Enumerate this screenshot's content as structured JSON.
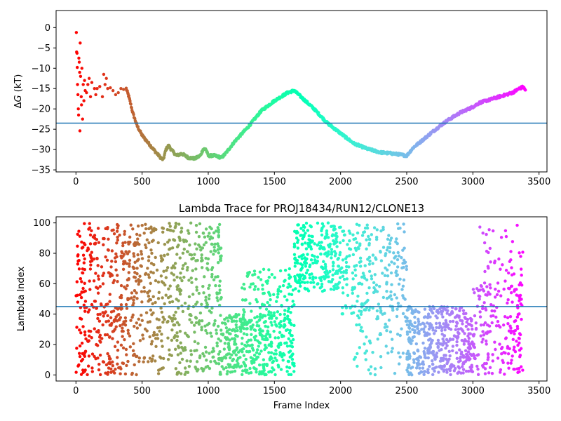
{
  "chart_data": [
    {
      "type": "scatter",
      "title": "",
      "xlabel": "",
      "ylabel_prefix": "Δ",
      "ylabel_var": "G",
      "ylabel_suffix": " (kT)",
      "xlim": [
        -150,
        3560
      ],
      "ylim": [
        -35.5,
        4.2
      ],
      "xticks": [
        0,
        500,
        1000,
        1500,
        2000,
        2500,
        3000,
        3500
      ],
      "yticks": [
        0,
        -5,
        -10,
        -15,
        -20,
        -25,
        -30,
        -35
      ],
      "hline": {
        "y": -23.5,
        "color": "#1f77b4"
      },
      "colormap": "rainbow",
      "trace_knots": [
        [
          380,
          -15
        ],
        [
          400,
          -17
        ],
        [
          430,
          -21
        ],
        [
          460,
          -24
        ],
        [
          500,
          -26.5
        ],
        [
          550,
          -28.5
        ],
        [
          600,
          -30.5
        ],
        [
          640,
          -32
        ],
        [
          660,
          -32.5
        ],
        [
          680,
          -30
        ],
        [
          700,
          -29
        ],
        [
          720,
          -30
        ],
        [
          760,
          -31.5
        ],
        [
          800,
          -31
        ],
        [
          850,
          -32
        ],
        [
          900,
          -32.2
        ],
        [
          940,
          -31.5
        ],
        [
          960,
          -30
        ],
        [
          980,
          -29.8
        ],
        [
          1000,
          -31.5
        ],
        [
          1050,
          -31.5
        ],
        [
          1100,
          -32
        ],
        [
          1130,
          -31
        ],
        [
          1200,
          -28
        ],
        [
          1300,
          -24.5
        ],
        [
          1400,
          -20.5
        ],
        [
          1500,
          -18
        ],
        [
          1600,
          -16
        ],
        [
          1650,
          -15.5
        ],
        [
          1700,
          -17
        ],
        [
          1800,
          -20
        ],
        [
          1900,
          -23.5
        ],
        [
          2000,
          -26
        ],
        [
          2100,
          -28.5
        ],
        [
          2200,
          -29.8
        ],
        [
          2300,
          -30.7
        ],
        [
          2400,
          -31
        ],
        [
          2500,
          -31.5
        ],
        [
          2550,
          -29.5
        ],
        [
          2600,
          -28.2
        ],
        [
          2700,
          -25.5
        ],
        [
          2800,
          -23
        ],
        [
          2900,
          -21
        ],
        [
          3000,
          -19.5
        ],
        [
          3050,
          -18.5
        ],
        [
          3100,
          -18
        ],
        [
          3200,
          -17
        ],
        [
          3300,
          -16
        ],
        [
          3350,
          -15
        ],
        [
          3380,
          -14.6
        ],
        [
          3400,
          -15.5
        ]
      ],
      "scatter_points": [
        [
          3,
          -1.2
        ],
        [
          5,
          -6
        ],
        [
          8,
          -6.3
        ],
        [
          10,
          -9.8
        ],
        [
          12,
          -14
        ],
        [
          15,
          -16.5
        ],
        [
          18,
          -20
        ],
        [
          20,
          -21.5
        ],
        [
          22,
          -7.5
        ],
        [
          25,
          -8.5
        ],
        [
          28,
          -11
        ],
        [
          30,
          -25.4
        ],
        [
          32,
          -3.8
        ],
        [
          35,
          -12
        ],
        [
          40,
          -17
        ],
        [
          42,
          -19
        ],
        [
          45,
          -10
        ],
        [
          50,
          -22.5
        ],
        [
          55,
          -14
        ],
        [
          60,
          -18
        ],
        [
          65,
          -13
        ],
        [
          70,
          -15.5
        ],
        [
          80,
          -16
        ],
        [
          90,
          -14
        ],
        [
          100,
          -12.5
        ],
        [
          110,
          -17
        ],
        [
          120,
          -13.5
        ],
        [
          140,
          -15
        ],
        [
          150,
          -16.5
        ],
        [
          160,
          -15
        ],
        [
          180,
          -14.5
        ],
        [
          200,
          -17
        ],
        [
          210,
          -11.5
        ],
        [
          220,
          -14
        ],
        [
          230,
          -12.5
        ],
        [
          240,
          -15
        ],
        [
          260,
          -14.8
        ],
        [
          280,
          -15.5
        ],
        [
          300,
          -16.5
        ],
        [
          320,
          -16
        ],
        [
          340,
          -15
        ],
        [
          360,
          -15.2
        ]
      ]
    },
    {
      "type": "scatter",
      "title": "Lambda Trace for PROJ18434/RUN12/CLONE13",
      "xlabel": "Frame Index",
      "ylabel": "Lambda Index",
      "xlim": [
        -150,
        3560
      ],
      "ylim": [
        -4,
        104
      ],
      "xticks": [
        0,
        500,
        1000,
        1500,
        2000,
        2500,
        3000,
        3500
      ],
      "yticks": [
        0,
        20,
        40,
        60,
        80,
        100
      ],
      "hline": {
        "y": 45,
        "color": "#1f77b4"
      },
      "colormap": "rainbow",
      "x_range": [
        0,
        3400
      ],
      "segments": [
        {
          "x": [
            0,
            380
          ],
          "y": [
            0,
            100
          ],
          "n": 320
        },
        {
          "x": [
            380,
            1110
          ],
          "y": [
            0,
            100
          ],
          "n": 560
        },
        {
          "x": [
            1110,
            1650
          ],
          "y": [
            0,
            40
          ],
          "n": 380
        },
        {
          "x": [
            1250,
            1650
          ],
          "y": [
            40,
            70
          ],
          "n": 90
        },
        {
          "x": [
            1650,
            2000
          ],
          "y": [
            55,
            100
          ],
          "n": 260
        },
        {
          "x": [
            2000,
            2500
          ],
          "y": [
            40,
            100
          ],
          "n": 230
        },
        {
          "x": [
            2100,
            2500
          ],
          "y": [
            0,
            40
          ],
          "n": 60
        },
        {
          "x": [
            2500,
            3000
          ],
          "y": [
            0,
            45
          ],
          "n": 420
        },
        {
          "x": [
            3000,
            3380
          ],
          "y": [
            0,
            60
          ],
          "n": 190
        },
        {
          "x": [
            3050,
            3380
          ],
          "y": [
            60,
            100
          ],
          "n": 40
        }
      ]
    }
  ]
}
